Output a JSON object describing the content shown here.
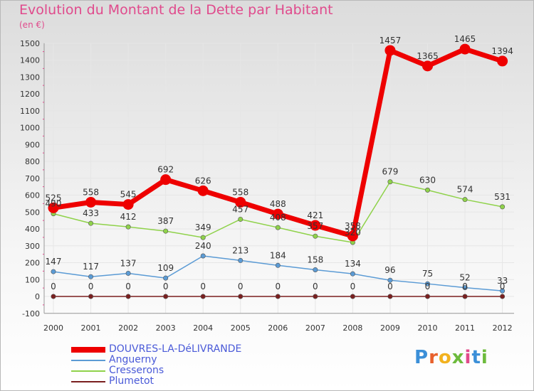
{
  "chart_data": {
    "type": "line",
    "title": "Evolution du Montant de la Dette par Habitant",
    "unit": "(en €)",
    "categories": [
      "2000",
      "2001",
      "2002",
      "2003",
      "2004",
      "2005",
      "2006",
      "2007",
      "2008",
      "2009",
      "2010",
      "2011",
      "2012"
    ],
    "ylim": [
      -100,
      1500
    ],
    "yticks": [
      -100,
      0,
      100,
      200,
      300,
      400,
      500,
      600,
      700,
      800,
      900,
      1000,
      1100,
      1200,
      1300,
      1400,
      1500
    ],
    "grid": true,
    "legend_position": "bottom-left",
    "series": [
      {
        "name": "DOUVRES-LA-DéLIVRANDE",
        "color": "#ee0000",
        "values": [
          525,
          558,
          545,
          692,
          626,
          558,
          488,
          421,
          358,
          1457,
          1365,
          1465,
          1394
        ]
      },
      {
        "name": "Anguerny",
        "color": "#5b9bd5",
        "values": [
          147,
          117,
          137,
          109,
          240,
          213,
          184,
          158,
          134,
          96,
          75,
          52,
          33
        ]
      },
      {
        "name": "Cresserons",
        "color": "#8fd24a",
        "values": [
          490,
          433,
          412,
          387,
          349,
          457,
          408,
          357,
          320,
          679,
          630,
          574,
          531
        ]
      },
      {
        "name": "Plumetot",
        "color": "#7a1f1f",
        "values": [
          0,
          0,
          0,
          0,
          0,
          0,
          0,
          0,
          0,
          0,
          0,
          0,
          0
        ]
      }
    ]
  },
  "logo": {
    "text": "Proxiti",
    "letter_colors": [
      "#3b8fd8",
      "#e8602c",
      "#f2b21f",
      "#6dbb3c",
      "#e14a8a",
      "#3b8fd8",
      "#6dbb3c"
    ]
  }
}
